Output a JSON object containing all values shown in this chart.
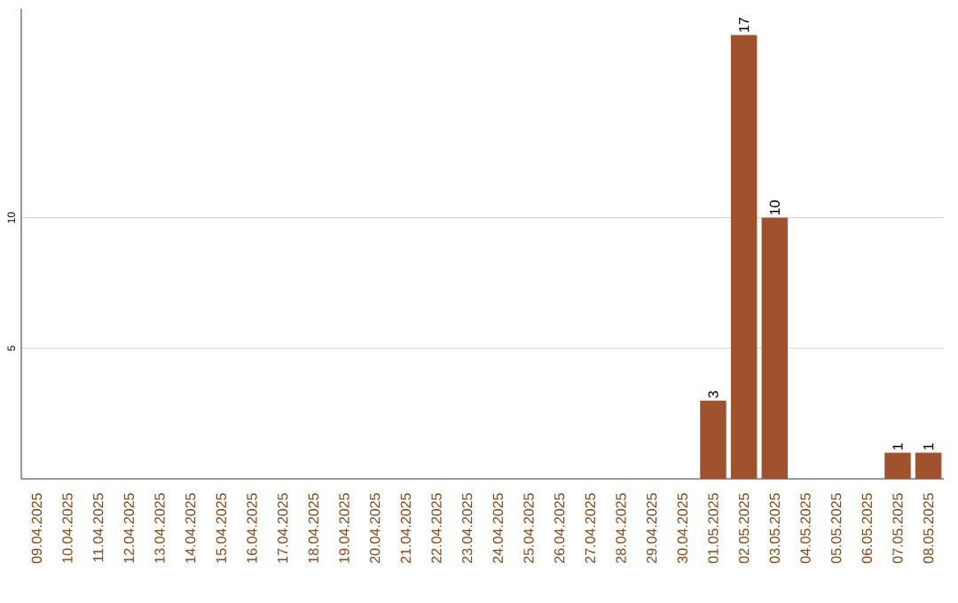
{
  "chart_data": {
    "type": "bar",
    "categories": [
      "09.04.2025",
      "10.04.2025",
      "11.04.2025",
      "12.04.2025",
      "13.04.2025",
      "14.04.2025",
      "15.04.2025",
      "16.04.2025",
      "17.04.2025",
      "18.04.2025",
      "19.04.2025",
      "20.04.2025",
      "21.04.2025",
      "22.04.2025",
      "23.04.2025",
      "24.04.2025",
      "25.04.2025",
      "26.04.2025",
      "27.04.2025",
      "28.04.2025",
      "29.04.2025",
      "30.04.2025",
      "01.05.2025",
      "02.05.2025",
      "03.05.2025",
      "04.05.2025",
      "05.05.2025",
      "06.05.2025",
      "07.05.2025",
      "08.05.2025"
    ],
    "values": [
      0,
      0,
      0,
      0,
      0,
      0,
      0,
      0,
      0,
      0,
      0,
      0,
      0,
      0,
      0,
      0,
      0,
      0,
      0,
      0,
      0,
      0,
      3,
      17,
      10,
      0,
      0,
      0,
      1,
      1
    ],
    "value_labels": [
      null,
      null,
      null,
      null,
      null,
      null,
      null,
      null,
      null,
      null,
      null,
      null,
      null,
      null,
      null,
      null,
      null,
      null,
      null,
      null,
      null,
      null,
      "3",
      "17",
      "10",
      null,
      null,
      null,
      "1",
      "1"
    ],
    "color": "#a0522d",
    "ylim": [
      0,
      18
    ],
    "yticks": [
      5,
      10
    ],
    "grid": "y"
  }
}
